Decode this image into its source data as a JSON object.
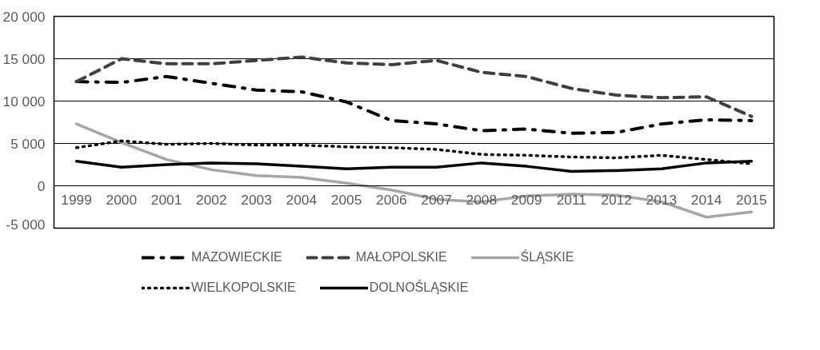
{
  "chart_data": {
    "type": "line",
    "categories": [
      "1999",
      "2000",
      "2001",
      "2002",
      "2003",
      "2004",
      "2005",
      "2006",
      "2007",
      "2008",
      "2009",
      "2011",
      "2012",
      "2013",
      "2014",
      "2015"
    ],
    "series": [
      {
        "name": "MAZOWIECKIE",
        "color": "#000000",
        "line_style": "dashdot",
        "values": [
          12300,
          12200,
          12900,
          12100,
          11300,
          11100,
          9900,
          7700,
          7300,
          6500,
          6700,
          6200,
          6300,
          7300,
          7800,
          7700
        ]
      },
      {
        "name": "MAŁOPOLSKIE",
        "color": "#404040",
        "line_style": "dashed",
        "values": [
          12300,
          15000,
          14400,
          14400,
          14800,
          15200,
          14500,
          14300,
          14800,
          13400,
          12900,
          11500,
          10700,
          10400,
          10500,
          8200
        ]
      },
      {
        "name": "ŚLĄSKIE",
        "color": "#a6a6a6",
        "line_style": "solid",
        "values": [
          7300,
          5100,
          3100,
          1900,
          1200,
          1000,
          300,
          -500,
          -1600,
          -1900,
          -1200,
          -1000,
          -1100,
          -1900,
          -3700,
          -3100
        ]
      },
      {
        "name": "WIELKOPOLSKIE",
        "color": "#000000",
        "line_style": "dotted",
        "values": [
          4500,
          5300,
          4900,
          5000,
          4800,
          4800,
          4600,
          4500,
          4300,
          3700,
          3600,
          3400,
          3300,
          3600,
          3100,
          2600
        ]
      },
      {
        "name": "DOLNOŚLĄSKIE",
        "color": "#000000",
        "line_style": "solid",
        "values": [
          2900,
          2200,
          2500,
          2700,
          2600,
          2300,
          2000,
          2200,
          2200,
          2700,
          2300,
          1700,
          1800,
          2000,
          2700,
          2900
        ]
      }
    ],
    "ylim": [
      -5000,
      20000
    ],
    "yticks": [
      {
        "value": -5000,
        "label": "-5 000"
      },
      0,
      {
        "value": 5000,
        "label": "5 000"
      },
      {
        "value": 10000,
        "label": "10 000"
      },
      {
        "value": 15000,
        "label": "15 000"
      },
      {
        "value": 20000,
        "label": "20 000"
      }
    ],
    "grid": "y",
    "legend": "bottom"
  }
}
